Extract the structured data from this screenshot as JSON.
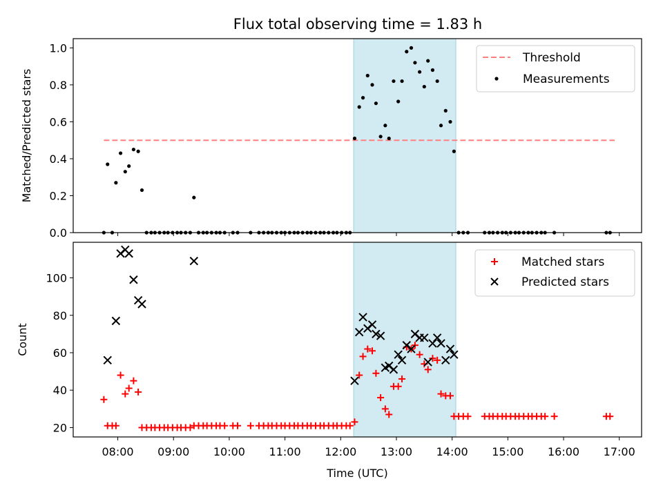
{
  "chart_data": [
    {
      "type": "scatter",
      "title": "Flux total observing time = 1.83 h",
      "xlabel": "",
      "ylabel": "Matched/Predicted stars",
      "xlim": [
        "07:12",
        "17:24"
      ],
      "ylim": [
        0,
        1.05
      ],
      "yticks": [
        0.0,
        0.2,
        0.4,
        0.6,
        0.8,
        1.0
      ],
      "ytick_labels": [
        "0.0",
        "0.2",
        "0.4",
        "0.6",
        "0.8",
        "1.0"
      ],
      "grid": false,
      "legend": "top-right",
      "span": {
        "x": [
          "12:14",
          "14:04"
        ],
        "color": "#add8e6"
      },
      "threshold": {
        "label": "Threshold",
        "y": 0.5,
        "x": [
          "07:45",
          "16:55"
        ],
        "color": "#ff7f7f"
      },
      "series": [
        {
          "name": "Measurements",
          "color": "#000000",
          "marker": "dot",
          "points": [
            [
              "07:45",
              0
            ],
            [
              "07:49",
              0.37
            ],
            [
              "07:54",
              0
            ],
            [
              "07:58",
              0.27
            ],
            [
              "08:03",
              0.43
            ],
            [
              "08:08",
              0.33
            ],
            [
              "08:12",
              0.36
            ],
            [
              "08:17",
              0.45
            ],
            [
              "08:22",
              0.44
            ],
            [
              "08:26",
              0.23
            ],
            [
              "08:31",
              0
            ],
            [
              "08:36",
              0
            ],
            [
              "08:40",
              0
            ],
            [
              "08:45",
              0
            ],
            [
              "08:50",
              0
            ],
            [
              "08:54",
              0
            ],
            [
              "08:59",
              0
            ],
            [
              "09:04",
              0
            ],
            [
              "09:08",
              0
            ],
            [
              "09:13",
              0
            ],
            [
              "09:18",
              0
            ],
            [
              "09:22",
              0.19
            ],
            [
              "09:27",
              0
            ],
            [
              "09:32",
              0
            ],
            [
              "09:36",
              0
            ],
            [
              "09:41",
              0
            ],
            [
              "09:46",
              0
            ],
            [
              "09:50",
              0
            ],
            [
              "09:55",
              0
            ],
            [
              "10:04",
              0
            ],
            [
              "10:09",
              0
            ],
            [
              "10:23",
              0
            ],
            [
              "10:32",
              0
            ],
            [
              "10:37",
              0
            ],
            [
              "10:42",
              0
            ],
            [
              "10:46",
              0
            ],
            [
              "10:51",
              0
            ],
            [
              "10:56",
              0
            ],
            [
              "11:00",
              0
            ],
            [
              "11:05",
              0
            ],
            [
              "11:10",
              0
            ],
            [
              "11:14",
              0
            ],
            [
              "11:19",
              0
            ],
            [
              "11:24",
              0
            ],
            [
              "11:28",
              0
            ],
            [
              "11:33",
              0
            ],
            [
              "11:38",
              0
            ],
            [
              "11:42",
              0
            ],
            [
              "11:47",
              0
            ],
            [
              "11:52",
              0
            ],
            [
              "11:56",
              0
            ],
            [
              "12:01",
              0
            ],
            [
              "12:06",
              0
            ],
            [
              "12:10",
              0
            ],
            [
              "12:15",
              0.51
            ],
            [
              "12:20",
              0.68
            ],
            [
              "12:24",
              0.73
            ],
            [
              "12:29",
              0.85
            ],
            [
              "12:34",
              0.8
            ],
            [
              "12:38",
              0.7
            ],
            [
              "12:43",
              0.52
            ],
            [
              "12:48",
              0.58
            ],
            [
              "12:52",
              0.51
            ],
            [
              "12:57",
              0.82
            ],
            [
              "13:02",
              0.71
            ],
            [
              "13:06",
              0.82
            ],
            [
              "13:11",
              0.98
            ],
            [
              "13:16",
              1.0
            ],
            [
              "13:20",
              0.92
            ],
            [
              "13:25",
              0.87
            ],
            [
              "13:30",
              0.79
            ],
            [
              "13:34",
              0.93
            ],
            [
              "13:39",
              0.88
            ],
            [
              "13:44",
              0.82
            ],
            [
              "13:48",
              0.58
            ],
            [
              "13:53",
              0.66
            ],
            [
              "13:58",
              0.6
            ],
            [
              "14:02",
              0.44
            ],
            [
              "14:07",
              0
            ],
            [
              "14:12",
              0
            ],
            [
              "14:17",
              0
            ],
            [
              "14:35",
              0
            ],
            [
              "14:40",
              0
            ],
            [
              "14:44",
              0
            ],
            [
              "14:49",
              0
            ],
            [
              "14:54",
              0
            ],
            [
              "14:58",
              0
            ],
            [
              "15:03",
              0
            ],
            [
              "15:08",
              0
            ],
            [
              "15:12",
              0
            ],
            [
              "15:17",
              0
            ],
            [
              "15:22",
              0
            ],
            [
              "15:26",
              0
            ],
            [
              "15:31",
              0
            ],
            [
              "15:36",
              0
            ],
            [
              "15:40",
              0
            ],
            [
              "15:50",
              0
            ],
            [
              "16:46",
              0
            ],
            [
              "16:50",
              0
            ]
          ]
        }
      ]
    },
    {
      "type": "scatter",
      "title": "",
      "xlabel": "Time (UTC)",
      "ylabel": "Count",
      "xlim": [
        "07:12",
        "17:24"
      ],
      "ylim": [
        15,
        119
      ],
      "xticks": [
        "08:00",
        "09:00",
        "10:00",
        "11:00",
        "12:00",
        "13:00",
        "14:00",
        "15:00",
        "16:00",
        "17:00"
      ],
      "yticks": [
        20,
        40,
        60,
        80,
        100
      ],
      "ytick_labels": [
        "20",
        "40",
        "60",
        "80",
        "100"
      ],
      "grid": false,
      "legend": "top-right",
      "span": {
        "x": [
          "12:14",
          "14:04"
        ],
        "color": "#add8e6"
      },
      "series": [
        {
          "name": "Matched stars",
          "color": "#ff0000",
          "marker": "plus",
          "points": [
            [
              "07:45",
              35
            ],
            [
              "07:49",
              21
            ],
            [
              "07:54",
              21
            ],
            [
              "07:58",
              21
            ],
            [
              "08:03",
              48
            ],
            [
              "08:08",
              38
            ],
            [
              "08:12",
              41
            ],
            [
              "08:17",
              45
            ],
            [
              "08:22",
              39
            ],
            [
              "08:26",
              20
            ],
            [
              "08:31",
              20
            ],
            [
              "08:36",
              20
            ],
            [
              "08:40",
              20
            ],
            [
              "08:45",
              20
            ],
            [
              "08:50",
              20
            ],
            [
              "08:54",
              20
            ],
            [
              "08:59",
              20
            ],
            [
              "09:04",
              20
            ],
            [
              "09:08",
              20
            ],
            [
              "09:13",
              20
            ],
            [
              "09:18",
              20
            ],
            [
              "09:22",
              21
            ],
            [
              "09:27",
              21
            ],
            [
              "09:32",
              21
            ],
            [
              "09:36",
              21
            ],
            [
              "09:41",
              21
            ],
            [
              "09:46",
              21
            ],
            [
              "09:50",
              21
            ],
            [
              "09:55",
              21
            ],
            [
              "10:04",
              21
            ],
            [
              "10:09",
              21
            ],
            [
              "10:23",
              21
            ],
            [
              "10:32",
              21
            ],
            [
              "10:37",
              21
            ],
            [
              "10:42",
              21
            ],
            [
              "10:46",
              21
            ],
            [
              "10:51",
              21
            ],
            [
              "10:56",
              21
            ],
            [
              "11:00",
              21
            ],
            [
              "11:05",
              21
            ],
            [
              "11:10",
              21
            ],
            [
              "11:14",
              21
            ],
            [
              "11:19",
              21
            ],
            [
              "11:24",
              21
            ],
            [
              "11:28",
              21
            ],
            [
              "11:33",
              21
            ],
            [
              "11:38",
              21
            ],
            [
              "11:42",
              21
            ],
            [
              "11:47",
              21
            ],
            [
              "11:52",
              21
            ],
            [
              "11:56",
              21
            ],
            [
              "12:01",
              21
            ],
            [
              "12:06",
              21
            ],
            [
              "12:10",
              21
            ],
            [
              "12:15",
              23
            ],
            [
              "12:20",
              48
            ],
            [
              "12:24",
              58
            ],
            [
              "12:29",
              62
            ],
            [
              "12:34",
              61
            ],
            [
              "12:38",
              49
            ],
            [
              "12:43",
              36
            ],
            [
              "12:48",
              30
            ],
            [
              "12:52",
              27
            ],
            [
              "12:57",
              42
            ],
            [
              "13:02",
              42
            ],
            [
              "13:06",
              46
            ],
            [
              "13:11",
              63
            ],
            [
              "13:16",
              62
            ],
            [
              "13:20",
              64
            ],
            [
              "13:25",
              59
            ],
            [
              "13:30",
              54
            ],
            [
              "13:34",
              51
            ],
            [
              "13:39",
              57
            ],
            [
              "13:44",
              56
            ],
            [
              "13:48",
              38
            ],
            [
              "13:53",
              37
            ],
            [
              "13:58",
              37
            ],
            [
              "14:02",
              26
            ],
            [
              "14:07",
              26
            ],
            [
              "14:12",
              26
            ],
            [
              "14:17",
              26
            ],
            [
              "14:35",
              26
            ],
            [
              "14:40",
              26
            ],
            [
              "14:44",
              26
            ],
            [
              "14:49",
              26
            ],
            [
              "14:54",
              26
            ],
            [
              "14:58",
              26
            ],
            [
              "15:03",
              26
            ],
            [
              "15:08",
              26
            ],
            [
              "15:12",
              26
            ],
            [
              "15:17",
              26
            ],
            [
              "15:22",
              26
            ],
            [
              "15:26",
              26
            ],
            [
              "15:31",
              26
            ],
            [
              "15:36",
              26
            ],
            [
              "15:40",
              26
            ],
            [
              "15:50",
              26
            ],
            [
              "16:46",
              26
            ],
            [
              "16:50",
              26
            ]
          ]
        },
        {
          "name": "Predicted stars",
          "color": "#000000",
          "marker": "x",
          "points": [
            [
              "07:49",
              56
            ],
            [
              "07:58",
              77
            ],
            [
              "08:03",
              113
            ],
            [
              "08:08",
              115
            ],
            [
              "08:12",
              113
            ],
            [
              "08:17",
              99
            ],
            [
              "08:22",
              88
            ],
            [
              "08:26",
              86
            ],
            [
              "09:22",
              109
            ],
            [
              "12:15",
              45
            ],
            [
              "12:20",
              71
            ],
            [
              "12:24",
              79
            ],
            [
              "12:29",
              73
            ],
            [
              "12:34",
              75
            ],
            [
              "12:38",
              70
            ],
            [
              "12:43",
              69
            ],
            [
              "12:48",
              52
            ],
            [
              "12:52",
              53
            ],
            [
              "12:57",
              51
            ],
            [
              "13:02",
              59
            ],
            [
              "13:06",
              56
            ],
            [
              "13:11",
              64
            ],
            [
              "13:16",
              62
            ],
            [
              "13:20",
              70
            ],
            [
              "13:25",
              68
            ],
            [
              "13:30",
              68
            ],
            [
              "13:34",
              55
            ],
            [
              "13:39",
              65
            ],
            [
              "13:44",
              68
            ],
            [
              "13:48",
              65
            ],
            [
              "13:53",
              56
            ],
            [
              "13:58",
              62
            ],
            [
              "14:02",
              59
            ]
          ]
        }
      ]
    }
  ]
}
